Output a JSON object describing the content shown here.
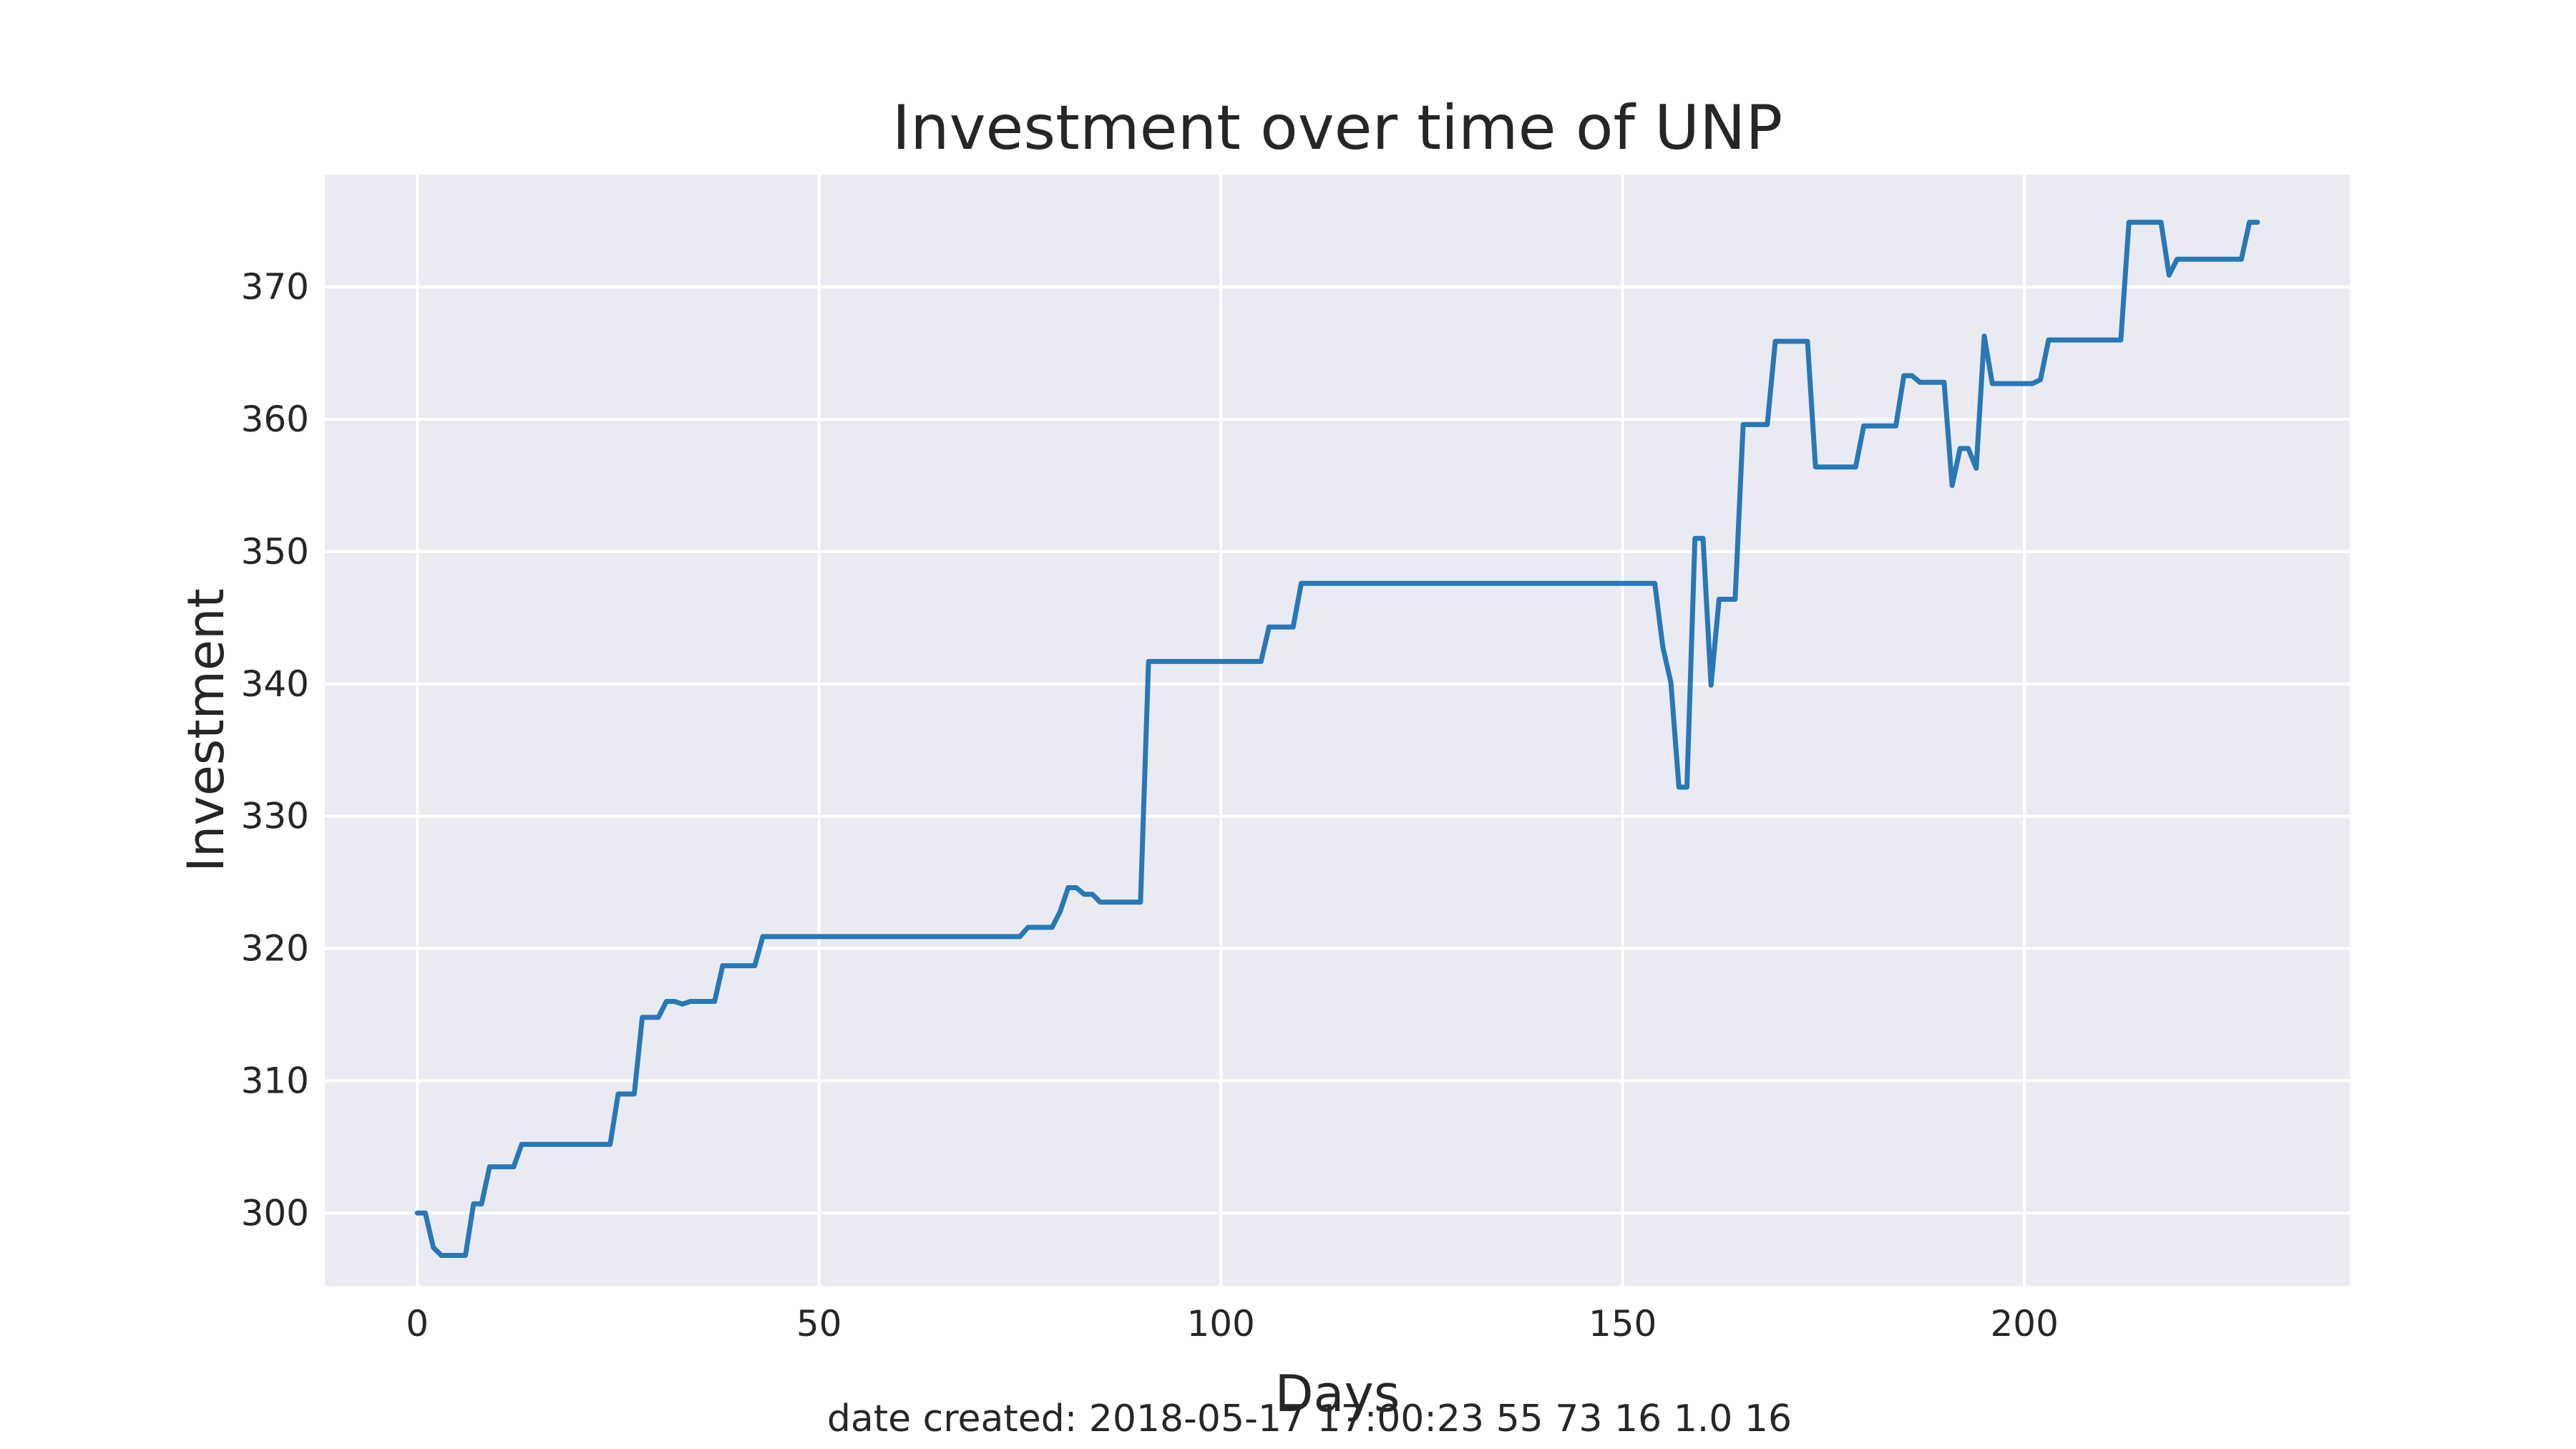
{
  "chart_data": {
    "type": "line",
    "title": "Investment over time of UNP",
    "xlabel": "Days",
    "ylabel": "Investment",
    "xlim": [
      -11.5,
      240.5
    ],
    "ylim": [
      294.5,
      378.5
    ],
    "xticks": [
      0,
      50,
      100,
      150,
      200
    ],
    "yticks": [
      300,
      310,
      320,
      330,
      340,
      350,
      360,
      370
    ],
    "grid": true,
    "style": "seaborn-darkgrid",
    "colors": {
      "background": "#EAEAF2",
      "grid": "#FFFFFF",
      "line": "#2878B5",
      "text": "#262626"
    },
    "series": [
      {
        "points": [
          [
            0,
            300
          ],
          [
            1,
            300
          ],
          [
            2,
            297.4
          ],
          [
            3,
            296.8
          ],
          [
            4,
            296.8
          ],
          [
            5,
            296.8
          ],
          [
            6,
            296.8
          ],
          [
            7,
            300.7
          ],
          [
            8,
            300.7
          ],
          [
            9,
            303.5
          ],
          [
            10,
            303.5
          ],
          [
            11,
            303.5
          ],
          [
            12,
            303.5
          ],
          [
            13,
            305.2
          ],
          [
            14,
            305.2
          ],
          [
            15,
            305.2
          ],
          [
            16,
            305.2
          ],
          [
            17,
            305.2
          ],
          [
            18,
            305.2
          ],
          [
            19,
            305.2
          ],
          [
            20,
            305.2
          ],
          [
            21,
            305.2
          ],
          [
            22,
            305.2
          ],
          [
            23,
            305.2
          ],
          [
            24,
            305.2
          ],
          [
            25,
            309
          ],
          [
            26,
            309
          ],
          [
            27,
            309
          ],
          [
            28,
            314.8
          ],
          [
            29,
            314.8
          ],
          [
            30,
            314.8
          ],
          [
            31,
            316
          ],
          [
            32,
            316
          ],
          [
            33,
            315.8
          ],
          [
            34,
            316
          ],
          [
            35,
            316
          ],
          [
            36,
            316
          ],
          [
            37,
            316
          ],
          [
            38,
            318.7
          ],
          [
            39,
            318.7
          ],
          [
            40,
            318.7
          ],
          [
            41,
            318.7
          ],
          [
            42,
            318.7
          ],
          [
            43,
            320.9
          ],
          [
            44,
            320.9
          ],
          [
            75,
            320.9
          ],
          [
            76,
            321.6
          ],
          [
            77,
            321.6
          ],
          [
            78,
            321.6
          ],
          [
            79,
            321.6
          ],
          [
            80,
            322.8
          ],
          [
            81,
            324.6
          ],
          [
            82,
            324.6
          ],
          [
            83,
            324.1
          ],
          [
            84,
            324.1
          ],
          [
            85,
            323.5
          ],
          [
            86,
            323.5
          ],
          [
            87,
            323.5
          ],
          [
            88,
            323.5
          ],
          [
            89,
            323.5
          ],
          [
            90,
            323.5
          ],
          [
            91,
            341.7
          ],
          [
            92,
            341.7
          ],
          [
            105,
            341.7
          ],
          [
            106,
            344.3
          ],
          [
            107,
            344.3
          ],
          [
            108,
            344.3
          ],
          [
            109,
            344.3
          ],
          [
            110,
            347.6
          ],
          [
            111,
            347.6
          ],
          [
            154,
            347.6
          ],
          [
            155,
            342.8
          ],
          [
            156,
            340.1
          ],
          [
            157,
            332.2
          ],
          [
            158,
            332.2
          ],
          [
            159,
            351
          ],
          [
            160,
            351
          ],
          [
            161,
            339.9
          ],
          [
            162,
            346.4
          ],
          [
            163,
            346.4
          ],
          [
            164,
            346.4
          ],
          [
            165,
            359.6
          ],
          [
            166,
            359.6
          ],
          [
            167,
            359.6
          ],
          [
            168,
            359.6
          ],
          [
            169,
            365.9
          ],
          [
            170,
            365.9
          ],
          [
            171,
            365.9
          ],
          [
            172,
            365.9
          ],
          [
            173,
            365.9
          ],
          [
            174,
            356.4
          ],
          [
            175,
            356.4
          ],
          [
            176,
            356.4
          ],
          [
            177,
            356.4
          ],
          [
            178,
            356.4
          ],
          [
            179,
            356.4
          ],
          [
            180,
            359.5
          ],
          [
            181,
            359.5
          ],
          [
            182,
            359.5
          ],
          [
            183,
            359.5
          ],
          [
            184,
            359.5
          ],
          [
            185,
            363.3
          ],
          [
            186,
            363.3
          ],
          [
            187,
            362.8
          ],
          [
            188,
            362.8
          ],
          [
            189,
            362.8
          ],
          [
            190,
            362.8
          ],
          [
            191,
            355
          ],
          [
            192,
            357.8
          ],
          [
            193,
            357.8
          ],
          [
            194,
            356.3
          ],
          [
            195,
            366.3
          ],
          [
            196,
            362.7
          ],
          [
            197,
            362.7
          ],
          [
            198,
            362.7
          ],
          [
            199,
            362.7
          ],
          [
            200,
            362.7
          ],
          [
            201,
            362.7
          ],
          [
            202,
            363
          ],
          [
            203,
            366
          ],
          [
            204,
            366
          ],
          [
            212,
            366
          ],
          [
            213,
            374.9
          ],
          [
            214,
            374.9
          ],
          [
            215,
            374.9
          ],
          [
            216,
            374.9
          ],
          [
            217,
            374.9
          ],
          [
            218,
            370.9
          ],
          [
            219,
            372.1
          ],
          [
            220,
            372.1
          ],
          [
            227,
            372.1
          ],
          [
            228,
            374.9
          ],
          [
            229,
            374.9
          ]
        ]
      }
    ]
  },
  "footer": {
    "text": "date created: 2018-05-17 17:00:23 55 73 16 1.0 16"
  }
}
